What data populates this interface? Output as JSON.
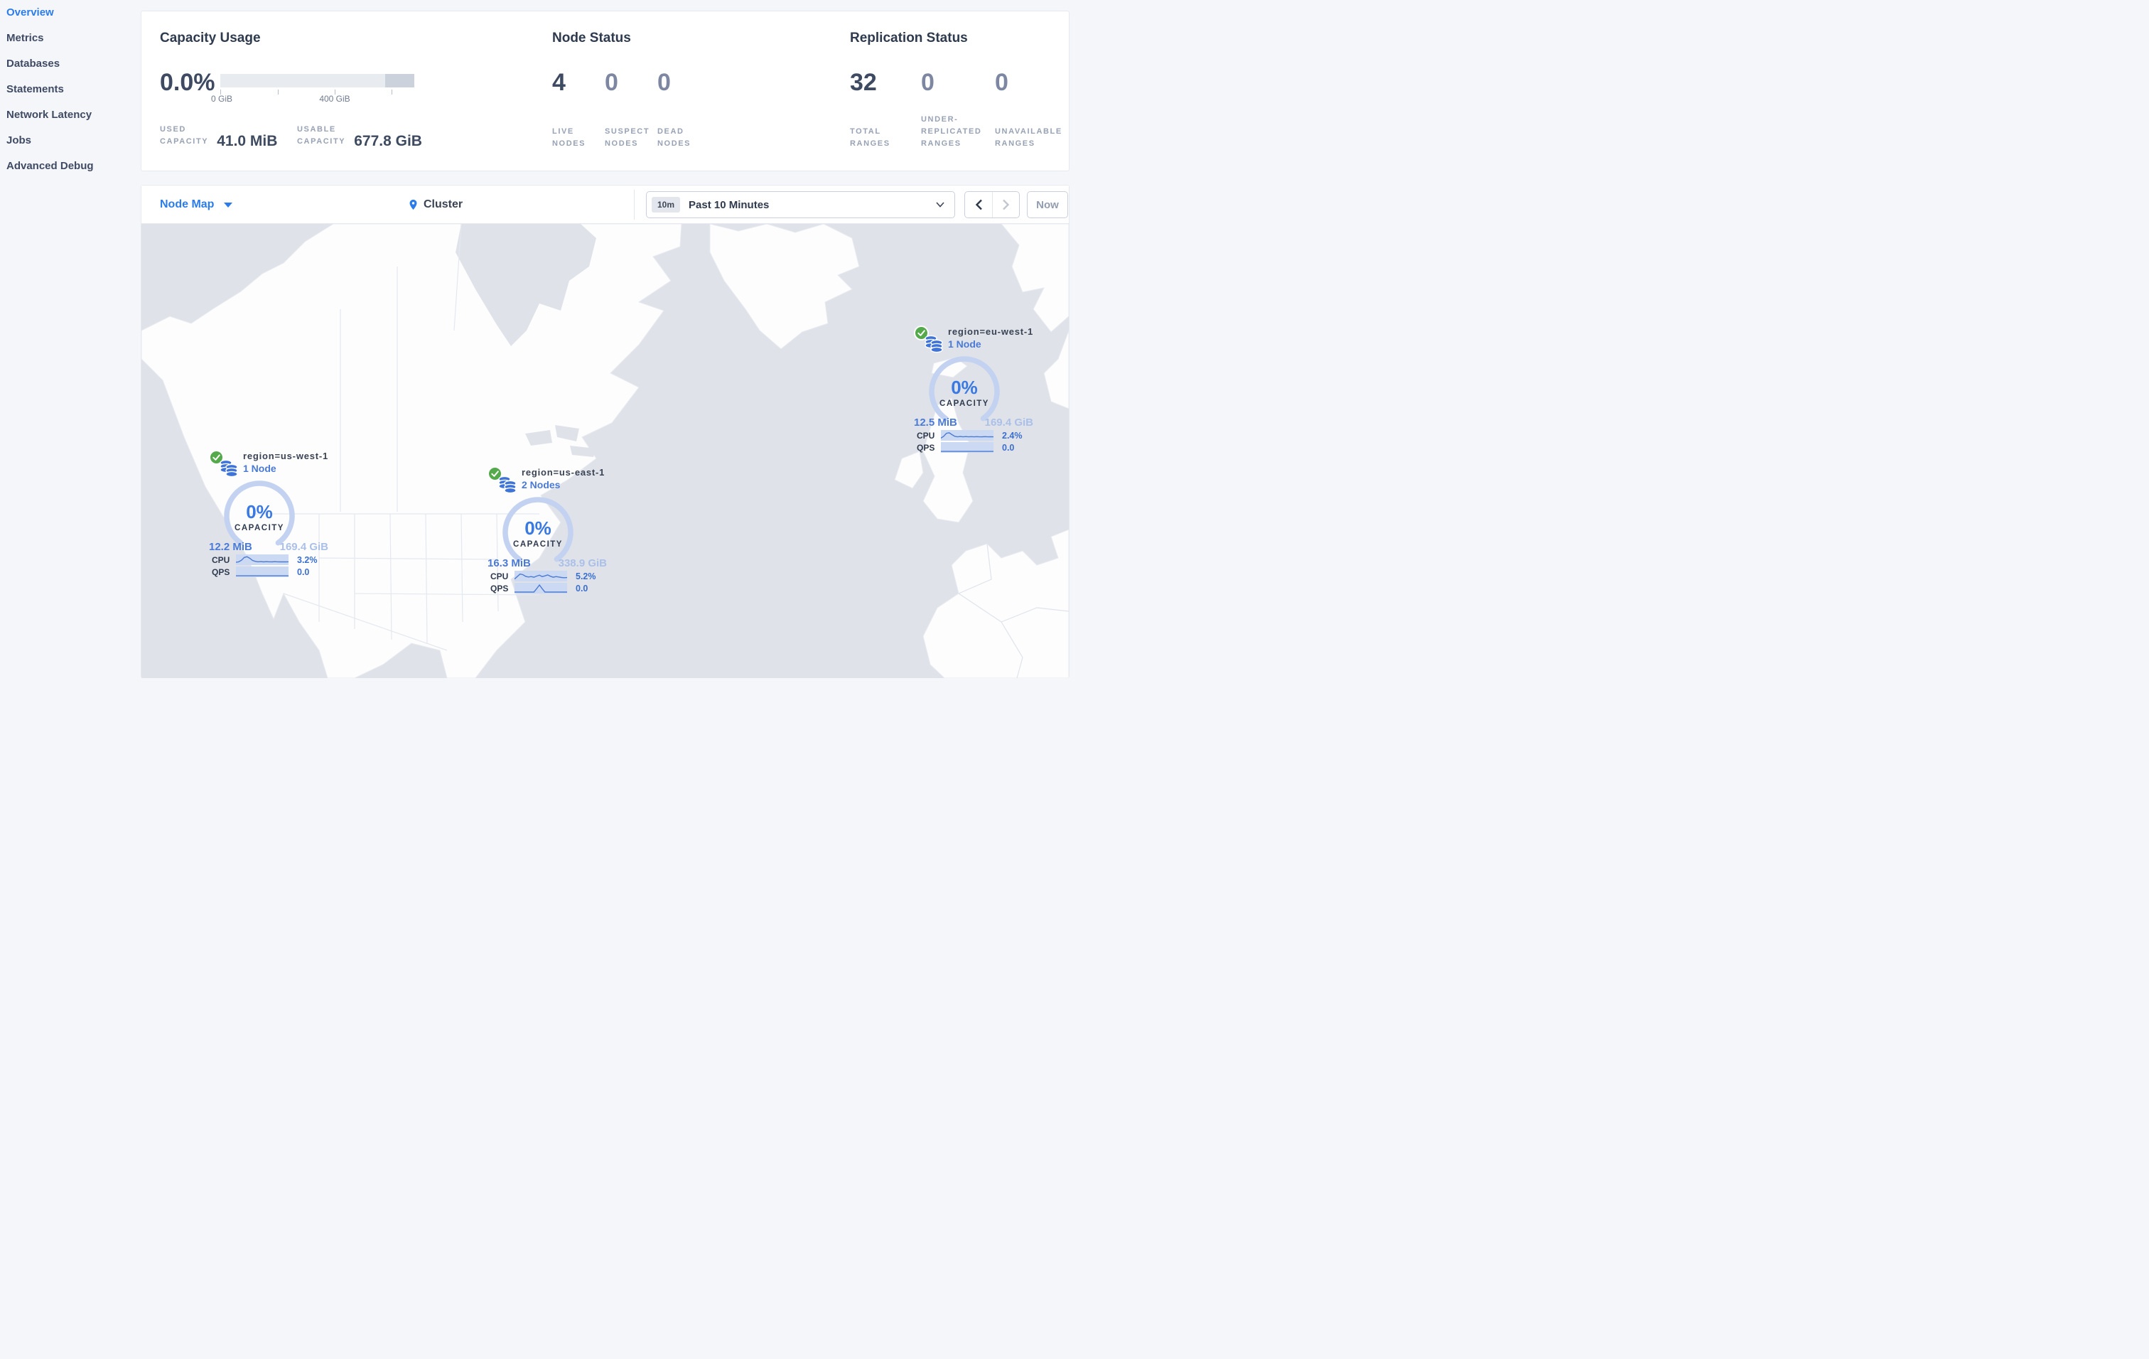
{
  "colors": {
    "accent_blue": "#2b7cea",
    "marker_blue": "#3e74d8",
    "healthy_green": "#54a94b",
    "water": "#dfe3e9",
    "land": "#fdfdfe"
  },
  "sidebar": {
    "items": [
      {
        "label": "Overview",
        "active": true
      },
      {
        "label": "Metrics",
        "active": false
      },
      {
        "label": "Databases",
        "active": false
      },
      {
        "label": "Statements",
        "active": false
      },
      {
        "label": "Network Latency",
        "active": false
      },
      {
        "label": "Jobs",
        "active": false
      },
      {
        "label": "Advanced Debug",
        "active": false
      }
    ]
  },
  "panels": {
    "capacity": {
      "title": "Capacity Usage",
      "percent": "0.0%",
      "tick_label_0": "0 GiB",
      "tick_label_400": "400 GiB",
      "used": {
        "lines": [
          "USED",
          "CAPACITY"
        ],
        "value": "41.0 MiB"
      },
      "usable": {
        "lines": [
          "USABLE",
          "CAPACITY"
        ],
        "value": "677.8 GiB"
      }
    },
    "nodes": {
      "title": "Node Status",
      "stats": [
        {
          "value": "4",
          "dim": false,
          "lines": [
            "LIVE",
            "NODES"
          ]
        },
        {
          "value": "0",
          "dim": true,
          "lines": [
            "SUSPECT",
            "NODES"
          ]
        },
        {
          "value": "0",
          "dim": true,
          "lines": [
            "DEAD",
            "NODES"
          ]
        }
      ]
    },
    "replication": {
      "title": "Replication Status",
      "stats": [
        {
          "value": "32",
          "dim": false,
          "lines": [
            "TOTAL",
            "RANGES"
          ]
        },
        {
          "value": "0",
          "dim": true,
          "lines": [
            "UNDER-",
            "REPLICATED",
            "RANGES"
          ]
        },
        {
          "value": "0",
          "dim": true,
          "lines": [
            "UNAVAILABLE",
            "RANGES"
          ]
        }
      ]
    }
  },
  "toolbar": {
    "view_label": "Node Map",
    "breadcrumb": "Cluster",
    "range_badge": "10m",
    "range_label": "Past 10 Minutes",
    "now_label": "Now"
  },
  "markers": [
    {
      "region": "region=us-west-1",
      "nodes": "1 Node",
      "percent": "0%",
      "capacity_label": "CAPACITY",
      "used": "12.2 MiB",
      "usable": "169.4 GiB",
      "cpu_label": "CPU",
      "cpu": "3.2%",
      "qps_label": "QPS",
      "qps": "0.0",
      "cpu_spark": [
        0.78,
        0.72,
        0.55,
        0.25,
        0.18,
        0.35,
        0.58,
        0.68,
        0.72,
        0.7,
        0.73,
        0.71,
        0.72,
        0.73,
        0.71,
        0.72,
        0.73,
        0.72,
        0.73,
        0.72
      ],
      "qps_spark": [
        0.93,
        0.93,
        0.93,
        0.93,
        0.93,
        0.93,
        0.93,
        0.93,
        0.93,
        0.93,
        0.93,
        0.93,
        0.93,
        0.93,
        0.93,
        0.93,
        0.93,
        0.93,
        0.93,
        0.93
      ]
    },
    {
      "region": "region=us-east-1",
      "nodes": "2 Nodes",
      "percent": "0%",
      "capacity_label": "CAPACITY",
      "used": "16.3 MiB",
      "usable": "338.9 GiB",
      "cpu_label": "CPU",
      "cpu": "5.2%",
      "qps_label": "QPS",
      "qps": "0.0",
      "cpu_spark": [
        0.82,
        0.55,
        0.28,
        0.35,
        0.52,
        0.6,
        0.55,
        0.62,
        0.5,
        0.4,
        0.55,
        0.48,
        0.38,
        0.52,
        0.62,
        0.55,
        0.6,
        0.65,
        0.68,
        0.66
      ],
      "qps_spark": [
        0.92,
        0.92,
        0.92,
        0.92,
        0.92,
        0.92,
        0.92,
        0.92,
        0.55,
        0.15,
        0.55,
        0.92,
        0.92,
        0.92,
        0.92,
        0.92,
        0.92,
        0.92,
        0.92,
        0.92
      ]
    },
    {
      "region": "region=eu-west-1",
      "nodes": "1 Node",
      "percent": "0%",
      "capacity_label": "CAPACITY",
      "used": "12.5 MiB",
      "usable": "169.4 GiB",
      "cpu_label": "CPU",
      "cpu": "2.4%",
      "qps_label": "QPS",
      "qps": "0.0",
      "cpu_spark": [
        0.8,
        0.6,
        0.28,
        0.22,
        0.42,
        0.6,
        0.66,
        0.62,
        0.66,
        0.63,
        0.66,
        0.64,
        0.66,
        0.64,
        0.66,
        0.65,
        0.64,
        0.66,
        0.65,
        0.66
      ],
      "qps_spark": [
        0.93,
        0.93,
        0.93,
        0.93,
        0.93,
        0.93,
        0.93,
        0.93,
        0.93,
        0.93,
        0.93,
        0.93,
        0.93,
        0.93,
        0.93,
        0.93,
        0.93,
        0.93,
        0.93,
        0.93
      ]
    }
  ]
}
